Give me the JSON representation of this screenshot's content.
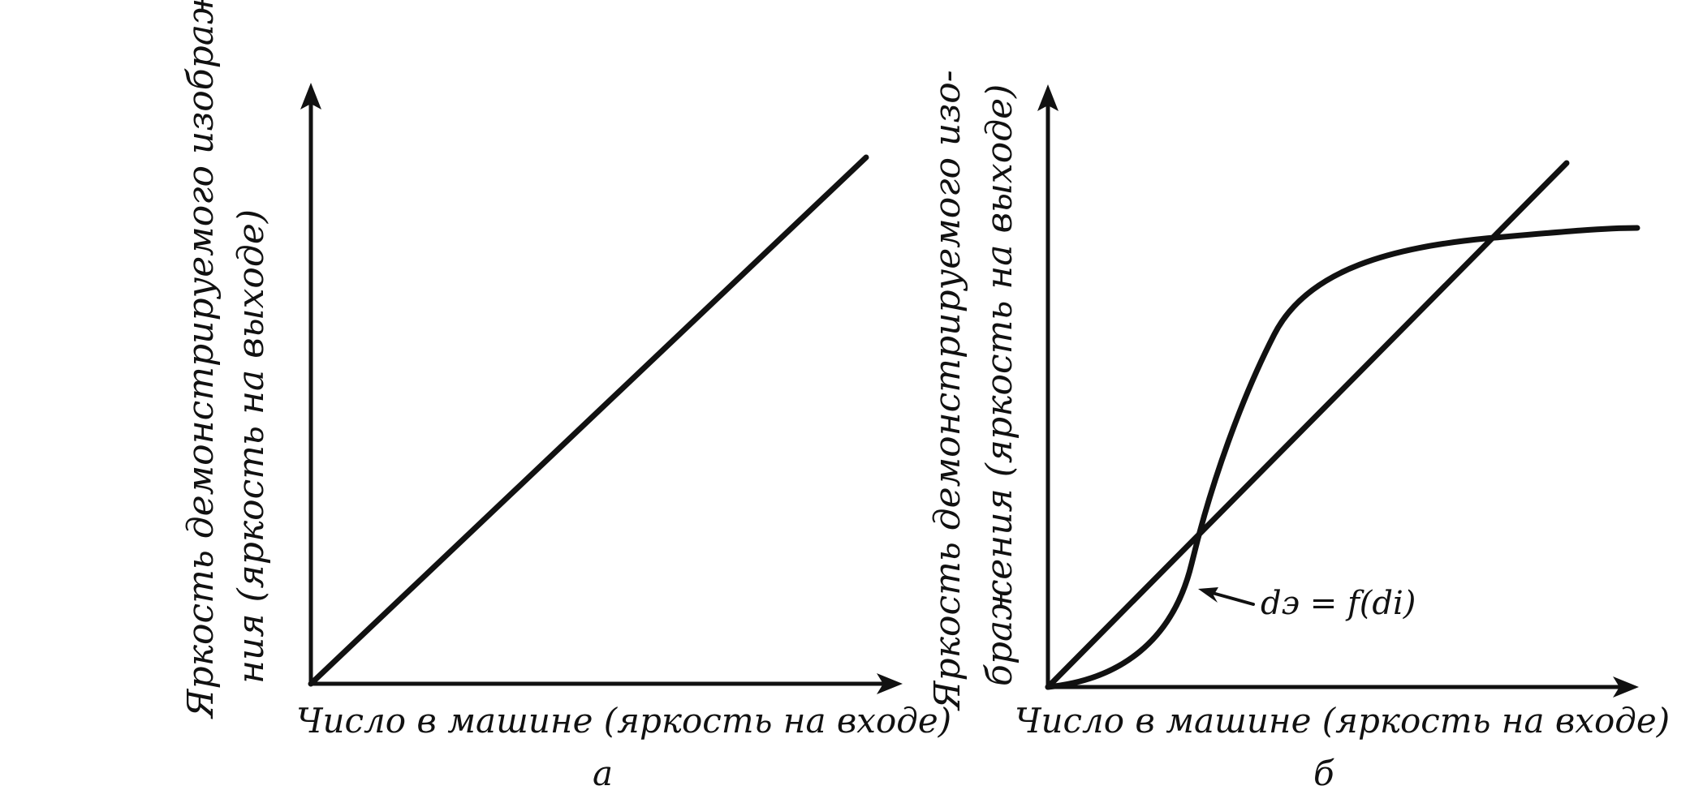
{
  "panel_a": {
    "y_label_line1": "Яркость демонстрируемого изображе-",
    "y_label_line2": "ния (яркость на выходе)",
    "x_label": "Число в машине (яркость на входе)",
    "letter": "а"
  },
  "panel_b": {
    "y_label_line1": "Яркость демонстрируемого изо-",
    "y_label_line2": "бражения (яркость на выходе)",
    "x_label": "Число в машине (яркость на входе)",
    "letter": "б",
    "curve_label": "dэ = f(di)"
  },
  "colors": {
    "ink": "#111111",
    "background": "#ffffff"
  }
}
